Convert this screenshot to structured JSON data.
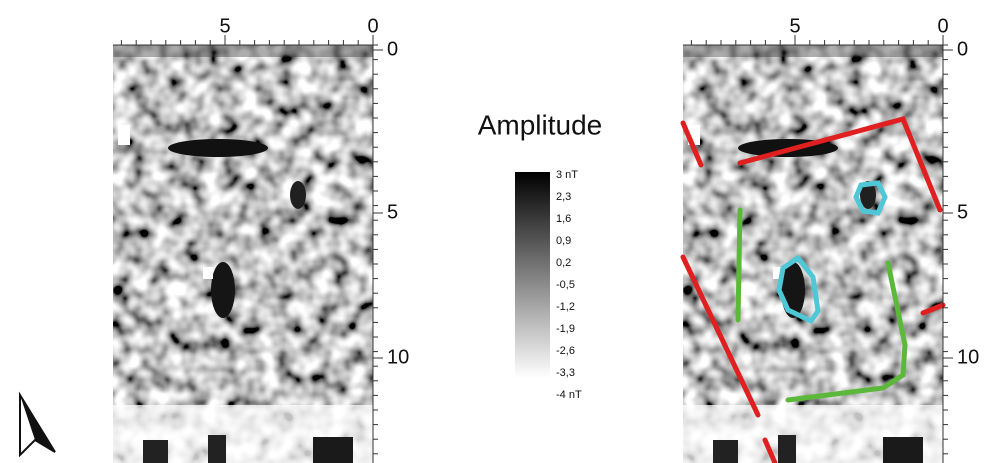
{
  "left_panel": {
    "x_axis": {
      "ticks": [
        "5",
        "0"
      ]
    },
    "y_axis": {
      "ticks": [
        "0",
        "5",
        "10"
      ]
    }
  },
  "right_panel": {
    "x_axis": {
      "ticks": [
        "5",
        "0"
      ]
    },
    "y_axis": {
      "ticks": [
        "0",
        "5",
        "10"
      ]
    }
  },
  "legend": {
    "title": "Amplitude",
    "labels": [
      "3 nT",
      "2,3",
      "1,6",
      "0,9",
      "0,2",
      "-0,5",
      "-1,2",
      "-1,9",
      "-2,6",
      "-3,3",
      "-4 nT"
    ]
  }
}
